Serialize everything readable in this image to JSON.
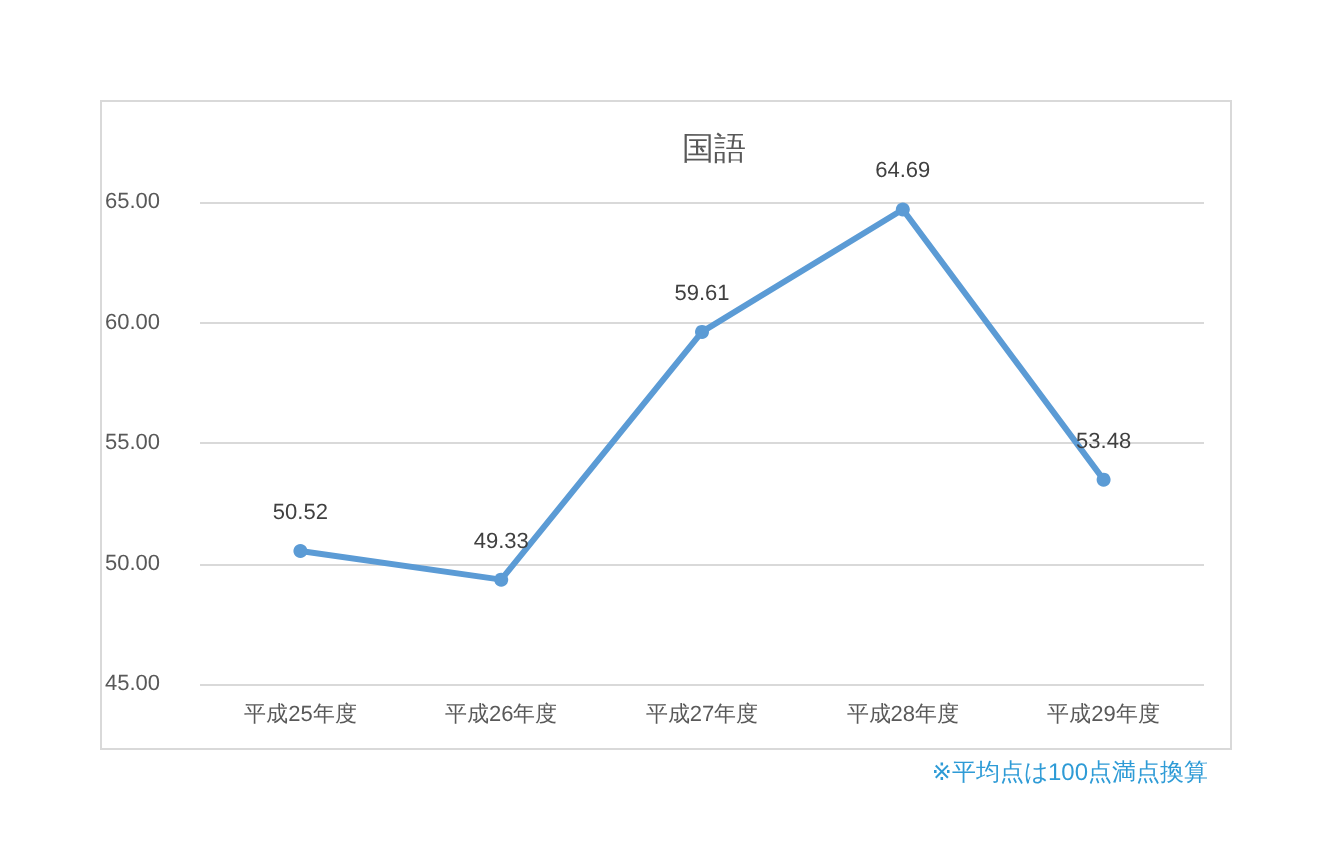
{
  "chart_data": {
    "type": "line",
    "title": "国語",
    "categories": [
      "平成25年度",
      "平成26年度",
      "平成27年度",
      "平成28年度",
      "平成29年度"
    ],
    "series": [
      {
        "color": "#5b9bd5",
        "values": [
          50.52,
          49.33,
          59.61,
          64.69,
          53.48
        ]
      }
    ],
    "ylim": [
      45,
      65
    ],
    "yticks": [
      {
        "value": 45,
        "label": "45.00"
      },
      {
        "value": 50,
        "label": "50.00"
      },
      {
        "value": 55,
        "label": "55.00"
      },
      {
        "value": 60,
        "label": "60.00"
      },
      {
        "value": 65,
        "label": "65.00"
      }
    ],
    "grid": "y",
    "marker": "circle",
    "line_style": "solid",
    "data_labels": true,
    "annotations": [
      "※平均点は100点満点換算"
    ]
  }
}
